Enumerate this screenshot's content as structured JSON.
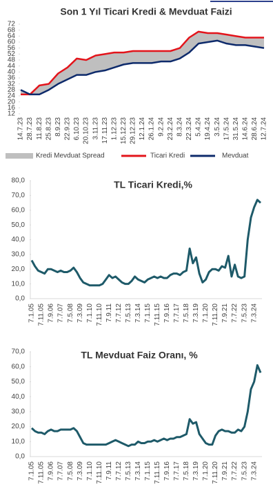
{
  "chart_data": [
    {
      "type": "line",
      "title": "Son 1 Yıl Ticari Kredi & Mevduat Faizi",
      "categories": [
        "14.7.23",
        "28.7.23",
        "11.8.23",
        "25.8.23",
        "8.9.23",
        "22.9.23",
        "6.10.23",
        "20.10.23",
        "3.11.23",
        "17.11.23",
        "1.12.23",
        "15.12.23",
        "29.12.23",
        "12.1.24",
        "26.1.24",
        "9.2.24",
        "23.2.24",
        "8.3.24",
        "22.3.24",
        "5.4.24",
        "19.4.24",
        "3.5.24",
        "17.5.24",
        "31.5.24",
        "14.6.24",
        "28.6.24",
        "12.7.24"
      ],
      "series": [
        {
          "name": "Ticari Kredi",
          "color": "#e3141b",
          "values": [
            25,
            25,
            31,
            32,
            39,
            43,
            49,
            48,
            51,
            52,
            53,
            53,
            54,
            54,
            54,
            54,
            54,
            56,
            63,
            67,
            66,
            66,
            65,
            64,
            63,
            63,
            63
          ]
        },
        {
          "name": "Mevduat",
          "color": "#0d2a6b",
          "values": [
            28,
            25,
            25,
            28,
            32,
            35,
            38,
            38,
            40,
            41,
            43,
            45,
            46,
            46,
            46,
            47,
            47,
            49,
            53,
            59,
            60,
            61,
            59,
            58,
            58,
            57,
            56
          ]
        }
      ],
      "area_label": "Kredi Mevduat Spread",
      "area_color": "#bfbfbf",
      "ylim": [
        12,
        72
      ],
      "yticks": [
        12,
        16,
        20,
        24,
        28,
        32,
        36,
        40,
        44,
        48,
        52,
        56,
        60,
        64,
        68,
        72
      ],
      "grid": false,
      "legend": "bottom"
    },
    {
      "type": "line",
      "title": "TL Ticari Kredi,%",
      "categories": [
        "7.1.05",
        null,
        null,
        "7.11.05",
        null,
        null,
        "7.9.06",
        null,
        null,
        "7.7.07",
        null,
        null,
        "7.5.08",
        null,
        null,
        "7.3.09",
        null,
        null,
        "7.1.10",
        null,
        null,
        "7.11.10",
        null,
        null,
        "7.9.11",
        null,
        null,
        "7.7.12",
        null,
        null,
        "7.5.13",
        null,
        null,
        "7.3.14",
        null,
        null,
        "7.1.15",
        null,
        null,
        "7.11.15",
        null,
        null,
        "7.9.16",
        null,
        null,
        "7.7.17",
        null,
        null,
        "7.5.18",
        null,
        null,
        "7.3.19",
        null,
        null,
        "7.1.20",
        null,
        null,
        "7.11.20",
        null,
        null,
        "7.9.21",
        null,
        null,
        "7.7.22",
        null,
        null,
        "7.5.23",
        null,
        null,
        "7.3.24",
        null,
        null
      ],
      "series": [
        {
          "name": "TL Ticari Kredi",
          "color": "#1e5a69",
          "values": [
            26,
            22,
            19,
            18,
            17,
            20,
            20,
            19,
            18,
            19,
            18,
            18,
            19,
            21,
            18,
            14,
            11,
            10,
            9,
            9,
            9,
            9,
            10,
            13,
            16,
            14,
            15,
            13,
            11,
            10,
            10,
            12,
            15,
            13,
            12,
            11,
            13,
            14,
            15,
            14,
            15,
            14,
            14,
            16,
            17,
            17,
            16,
            18,
            19,
            34,
            24,
            28,
            17,
            11,
            13,
            18,
            20,
            20,
            19,
            22,
            21,
            29,
            15,
            23,
            15,
            14,
            15,
            40,
            55,
            62,
            67,
            65
          ]
        }
      ],
      "ylim": [
        0,
        80
      ],
      "yticks": [
        {
          "value": 0,
          "label": "0,0"
        },
        {
          "value": 10,
          "label": "10,0"
        },
        {
          "value": 20,
          "label": "20,0"
        },
        {
          "value": 30,
          "label": "30,0"
        },
        {
          "value": 40,
          "label": "40,0"
        },
        {
          "value": 50,
          "label": "50,0"
        },
        {
          "value": 60,
          "label": "60,0"
        },
        {
          "value": 70,
          "label": "70,0"
        },
        {
          "value": 80,
          "label": "80,0"
        }
      ],
      "grid": false
    },
    {
      "type": "line",
      "title": "TL  Mevduat Faiz Oranı, %",
      "categories": [
        "7.1.05",
        null,
        null,
        "7.11.05",
        null,
        null,
        "7.9.06",
        null,
        null,
        "7.7.07",
        null,
        null,
        "7.5.08",
        null,
        null,
        "7.3.09",
        null,
        null,
        "7.1.10",
        null,
        null,
        "7.11.10",
        null,
        null,
        "7.9.11",
        null,
        null,
        "7.7.12",
        null,
        null,
        "7.5.13",
        null,
        null,
        "7.3.14",
        null,
        null,
        "7.1.15",
        null,
        null,
        "7.11.15",
        null,
        null,
        "7.9.16",
        null,
        null,
        "7.7.17",
        null,
        null,
        "7.5.18",
        null,
        null,
        "7.3.19",
        null,
        null,
        "7.1.20",
        null,
        null,
        "7.11.20",
        null,
        null,
        "7.9.21",
        null,
        null,
        "7.7.22",
        null,
        null,
        "7.5.23",
        null,
        null,
        "7.3.24",
        null,
        null
      ],
      "series": [
        {
          "name": "TL Mevduat",
          "color": "#1e5a69",
          "values": [
            19,
            17,
            16,
            16,
            15,
            17,
            18,
            17,
            17,
            18,
            18,
            18,
            18,
            19,
            17,
            13,
            9,
            8,
            8,
            8,
            8,
            8,
            8,
            8,
            9,
            10,
            11,
            10,
            9,
            8,
            7,
            8,
            8,
            10,
            9,
            9,
            10,
            10,
            11,
            10,
            11,
            12,
            11,
            12,
            12,
            13,
            13,
            14,
            15,
            25,
            22,
            23,
            15,
            12,
            9,
            8,
            8,
            14,
            17,
            18,
            17,
            17,
            16,
            16,
            18,
            17,
            20,
            30,
            45,
            50,
            61,
            56
          ]
        }
      ],
      "ylim": [
        0,
        70
      ],
      "yticks": [
        {
          "value": 0,
          "label": "0,0"
        },
        {
          "value": 10,
          "label": "10,0"
        },
        {
          "value": 20,
          "label": "20,0"
        },
        {
          "value": 30,
          "label": "30,0"
        },
        {
          "value": 40,
          "label": "40,0"
        },
        {
          "value": 50,
          "label": "50,0"
        },
        {
          "value": 60,
          "label": "60,0"
        },
        {
          "value": 70,
          "label": "70,0"
        }
      ],
      "grid": false
    }
  ]
}
